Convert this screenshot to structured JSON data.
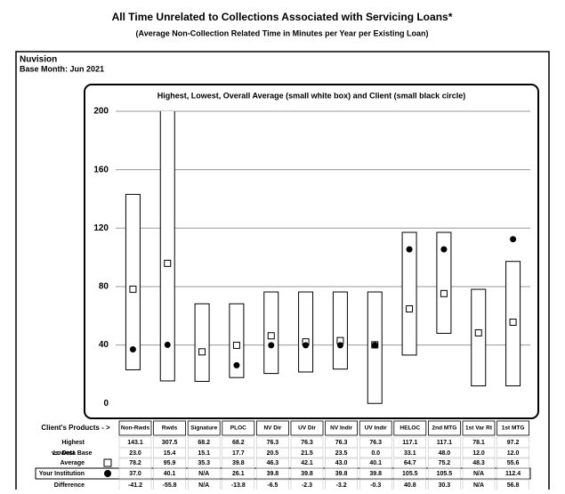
{
  "page_title": "All Time Unrelated to Collections Associated with Servicing Loans*",
  "page_subtitle": "(Average Non-Collection Related Time in Minutes per Year per Existing Loan)",
  "institution": "Nuvision",
  "base_month": "Base Month:  Jun 2021",
  "chart_data": {
    "type": "range",
    "title": "Highest, Lowest, Overall Average (small white box) and Client (small black circle)",
    "categories_header": "Client's Products - >",
    "comparison_label": "vs. Data Base",
    "categories": [
      "Non-Rwds",
      "Rwds",
      "Signature",
      "PLOC",
      "NV Dir",
      "UV Dir",
      "NV Indir",
      "UV Indir",
      "HELOC",
      "2nd MTG",
      "1st Var Rt",
      "1st MTG"
    ],
    "series": [
      {
        "name": "Highest",
        "color": "#ffffff",
        "values": [
          143.1,
          307.5,
          68.2,
          68.2,
          76.3,
          76.3,
          76.3,
          76.3,
          117.1,
          117.1,
          78.1,
          97.2
        ],
        "value_labels": [
          "143.1",
          "307.5",
          "68.2",
          "68.2",
          "76.3",
          "76.3",
          "76.3",
          "76.3",
          "117.1",
          "117.1",
          "78.1",
          "97.2"
        ]
      },
      {
        "name": "Lowest",
        "color": "#ffffff",
        "values": [
          23,
          15.4,
          15.1,
          17.7,
          20.5,
          21.5,
          23.5,
          0,
          33.1,
          48,
          12,
          12
        ],
        "value_labels": [
          "23.0",
          "15.4",
          "15.1",
          "17.7",
          "20.5",
          "21.5",
          "23.5",
          "0.0",
          "33.1",
          "48.0",
          "12.0",
          "12.0"
        ]
      },
      {
        "name": "Average",
        "color": "#ffffff",
        "values": [
          78.2,
          95.9,
          35.3,
          39.8,
          46.3,
          42.1,
          43,
          40.1,
          64.7,
          75.2,
          48.3,
          55.6
        ],
        "value_labels": [
          "78.2",
          "95.9",
          "35.3",
          "39.8",
          "46.3",
          "42.1",
          "43.0",
          "40.1",
          "64.7",
          "75.2",
          "48.3",
          "55.6"
        ]
      },
      {
        "name": "Your Institution",
        "color": "#000000",
        "values": [
          37,
          40.1,
          null,
          26.1,
          39.8,
          39.8,
          39.8,
          39.8,
          105.5,
          105.5,
          null,
          112.4
        ],
        "value_labels": [
          "37.0",
          "40.1",
          "N/A",
          "26.1",
          "39.8",
          "39.8",
          "39.8",
          "39.8",
          "105.5",
          "105.5",
          "N/A",
          "112.4"
        ]
      },
      {
        "name": "Difference",
        "values": [
          -41.2,
          -55.8,
          null,
          -13.8,
          -6.5,
          -2.3,
          -3.2,
          -0.3,
          40.8,
          30.3,
          null,
          56.8
        ],
        "value_labels": [
          "-41.2",
          "-55.8",
          "N/A",
          "-13.8",
          "-6.5",
          "-2.3",
          "-3.2",
          "-0.3",
          "40.8",
          "30.3",
          "N/A",
          "56.8"
        ]
      }
    ],
    "ylim": [
      -9,
      200
    ],
    "yticks": [
      0,
      40,
      80,
      120,
      160,
      200
    ],
    "grid": true
  }
}
